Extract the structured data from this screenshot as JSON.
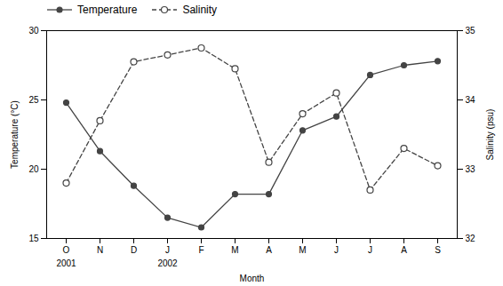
{
  "chart_data": {
    "type": "line",
    "categories": [
      "O",
      "N",
      "D",
      "J",
      "F",
      "M",
      "A",
      "M",
      "J",
      "J",
      "A",
      "S"
    ],
    "series": [
      {
        "name": "Temperature",
        "color": "#444444",
        "line_style": "solid",
        "marker": "filled_circle",
        "values": [
          24.8,
          21.3,
          18.8,
          16.5,
          15.8,
          18.2,
          18.2,
          22.8,
          23.8,
          26.8,
          27.5,
          27.8
        ]
      },
      {
        "name": "Salinity",
        "color": "#444444",
        "line_style": "dashed",
        "marker": "open_circle",
        "axis": "y2",
        "values": [
          32.8,
          33.7,
          34.55,
          34.65,
          34.75,
          34.45,
          33.1,
          33.8,
          34.1,
          32.7,
          33.3,
          33.05
        ]
      }
    ],
    "xlabel": "Month",
    "ylabel": "Temperature (°C)",
    "y2label": "Salinity (psu)",
    "ylim": [
      15,
      30
    ],
    "yticks": [
      15,
      20,
      25,
      30
    ],
    "y2lim": [
      32,
      35
    ],
    "y2ticks": [
      32,
      33,
      34,
      35
    ],
    "annotations": [
      {
        "text": "2001",
        "x": 0
      },
      {
        "text": "2002",
        "x": 3
      }
    ],
    "legend": "upper left",
    "grid": false
  }
}
